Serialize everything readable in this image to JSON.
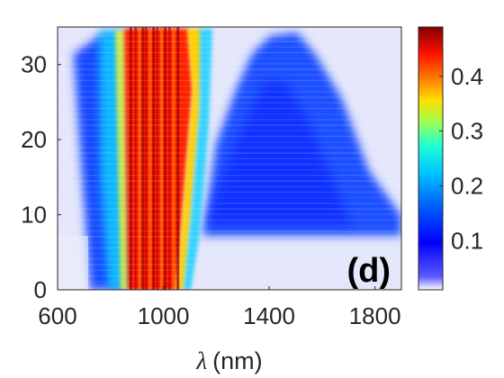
{
  "chart_data": {
    "type": "heatmap",
    "title": "",
    "xlabel_symbol": "λ",
    "xlabel_unit": "(nm)",
    "ylabel": "",
    "panel_label": "(d)",
    "xlim": [
      600,
      1900
    ],
    "ylim": [
      0,
      35
    ],
    "x_ticks": [
      600,
      1000,
      1400,
      1800
    ],
    "y_ticks": [
      0,
      10,
      20,
      30
    ],
    "colorbar": {
      "range": [
        0.01,
        0.49
      ],
      "ticks": [
        0.1,
        0.2,
        0.3,
        0.4
      ],
      "tick_labels": [
        "0.1",
        "0.2",
        "0.3",
        "0.4"
      ],
      "colormap": "jet-like (white at minimum, blue → cyan → yellow → red → dark red)"
    },
    "features": [
      {
        "name": "central peak band",
        "x_range_nm": [
          880,
          1080
        ],
        "y_range": [
          0,
          35
        ],
        "value_approx": 0.45
      },
      {
        "name": "band left shoulder",
        "x_range_nm": [
          800,
          880
        ],
        "y_range": [
          2,
          35
        ],
        "value_approx": 0.15
      },
      {
        "name": "band right edge",
        "x_range_nm": [
          1080,
          1160
        ],
        "y_range": [
          0,
          35
        ],
        "value_approx": 0.25
      },
      {
        "name": "right broadband wing",
        "x_range_nm": [
          1300,
          1800
        ],
        "y_range": [
          7,
          33
        ],
        "value_approx": 0.07
      }
    ]
  }
}
